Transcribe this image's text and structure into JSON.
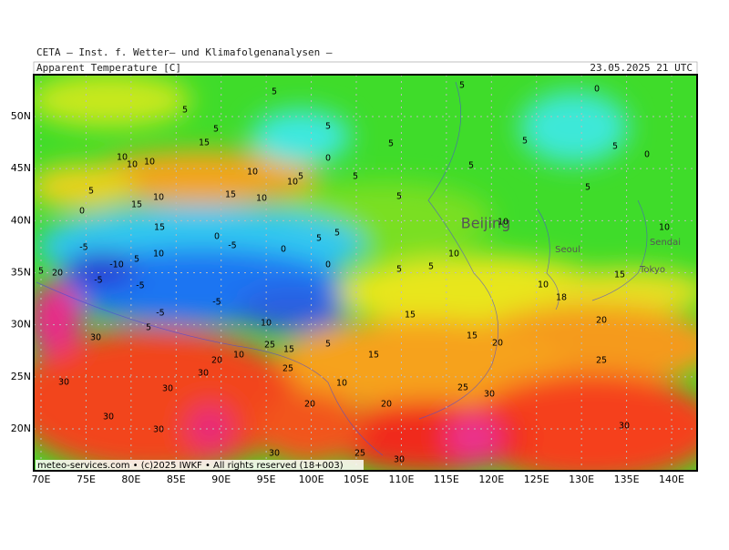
{
  "header": {
    "source": "CETA – Inst. f. Wetter– und Klimafolgenanalysen –",
    "title": "Apparent Temperature [C]",
    "date": "23.05.2025  21 UTC"
  },
  "lon_labels": [
    "70E",
    "75E",
    "80E",
    "85E",
    "90E",
    "95E",
    "100E",
    "105E",
    "110E",
    "115E",
    "120E",
    "125E",
    "130E",
    "135E",
    "140E"
  ],
  "lat_labels": [
    "50N",
    "45N",
    "40N",
    "35N",
    "30N",
    "25N",
    "20N"
  ],
  "cities": [
    "Beijing",
    "Seoul",
    "Sendai",
    "Tokyo"
  ],
  "contour_labels": [
    5,
    5,
    0,
    5,
    5,
    5,
    15,
    5,
    5,
    5,
    0,
    10,
    10,
    10,
    0,
    10,
    5,
    10,
    5,
    5,
    5,
    10,
    15,
    10,
    15,
    5,
    5,
    0,
    15,
    0,
    -5,
    5,
    5,
    0,
    10,
    10,
    -5,
    10,
    5,
    0,
    10,
    5,
    5,
    -10,
    15,
    5,
    20,
    -5,
    -5,
    10,
    18,
    -5,
    -5,
    15,
    20,
    10,
    5,
    30,
    15,
    20,
    25,
    15,
    5,
    15,
    10,
    20,
    25,
    30,
    25,
    30,
    10,
    30,
    25,
    30,
    20,
    20,
    30,
    30,
    30,
    30,
    25,
    30
  ],
  "footer": "meteo-services.com • (c)2025 IWKF • All rights reserved (18+003)"
}
